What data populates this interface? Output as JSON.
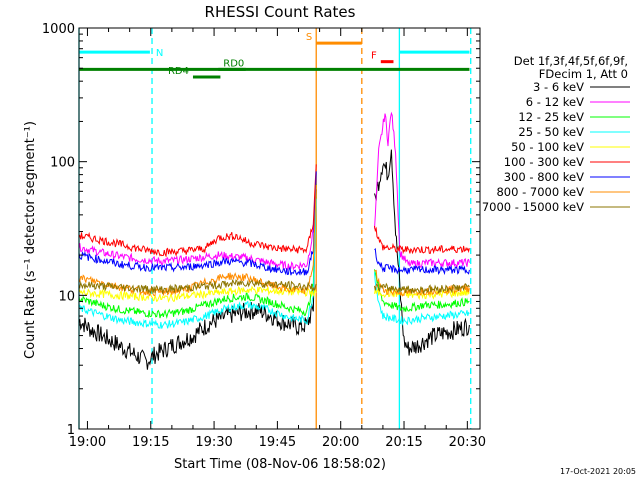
{
  "chart_data": {
    "type": "line",
    "title": "RHESSI Count Rates",
    "xlabel": "Start Time (08-Nov-06 18:58:02)",
    "ylabel": "Count Rate (s⁻¹ detector segment⁻¹)",
    "x_unit": "minutes since 18:58:02",
    "xlim": [
      0,
      95
    ],
    "ylim": [
      1,
      1000
    ],
    "y_scale": "log",
    "x_ticks": [
      {
        "label": "19:00",
        "value": 2
      },
      {
        "label": "19:15",
        "value": 17
      },
      {
        "label": "19:30",
        "value": 32
      },
      {
        "label": "19:45",
        "value": 47
      },
      {
        "label": "20:00",
        "value": 62
      },
      {
        "label": "20:15",
        "value": 77
      },
      {
        "label": "20:30",
        "value": 92
      }
    ],
    "y_ticks": [
      {
        "label": "1",
        "value": 1
      },
      {
        "label": "10",
        "value": 10
      },
      {
        "label": "100",
        "value": 100
      },
      {
        "label": "1000",
        "value": 1000
      }
    ],
    "legend": {
      "placement": "right",
      "header": [
        "Det 1f,3f,4f,5f,6f,9f,",
        "FDecim 1, Att 0"
      ]
    },
    "series": [
      {
        "name": "3 - 6 keV",
        "color": "#000000",
        "x": [
          0,
          3,
          8,
          12,
          16,
          18,
          22,
          27,
          31,
          35,
          39,
          42,
          45,
          48,
          52,
          54,
          55.5,
          56.2,
          70,
          72,
          73.2,
          74,
          75,
          77,
          78,
          80,
          83,
          86,
          90,
          92.5
        ],
        "y": [
          6.5,
          5.5,
          4.5,
          3.8,
          3.2,
          3.6,
          4.2,
          5.0,
          6.2,
          7.0,
          7.5,
          7.8,
          7.2,
          6.4,
          5.8,
          6.0,
          8.0,
          70,
          50,
          100,
          80,
          130,
          30,
          4.5,
          4.0,
          4.2,
          4.8,
          5.2,
          5.6,
          6.0
        ]
      },
      {
        "name": "6 - 12 keV",
        "color": "#ff00ff",
        "x": [
          0,
          5,
          10,
          15,
          20,
          25,
          33,
          40,
          45,
          50,
          54,
          55.5,
          56.2,
          70,
          71,
          72.5,
          73.2,
          74,
          75,
          76,
          78,
          82,
          86,
          92.5
        ],
        "y": [
          23,
          21,
          19.5,
          18.5,
          18,
          18.5,
          20,
          19,
          17.5,
          16.5,
          17,
          30,
          85,
          30,
          120,
          230,
          140,
          240,
          120,
          21,
          17,
          17.5,
          17.5,
          17.5
        ]
      },
      {
        "name": "12 - 25 keV",
        "color": "#00ff00",
        "x": [
          0,
          5,
          10,
          15,
          20,
          25,
          30,
          35,
          40,
          45,
          50,
          54,
          55.5,
          56.2,
          70,
          71,
          72,
          76,
          78,
          82,
          86,
          92.5
        ],
        "y": [
          9.5,
          8.5,
          7.8,
          7.4,
          7.2,
          7.6,
          8.5,
          9.5,
          9.8,
          9.0,
          8.0,
          7.5,
          12,
          70,
          16,
          11,
          9.0,
          8.0,
          8.0,
          8.5,
          8.5,
          9.0
        ]
      },
      {
        "name": "25 - 50 keV",
        "color": "#00ffff",
        "x": [
          0,
          5,
          10,
          15,
          20,
          25,
          30,
          35,
          40,
          45,
          50,
          54,
          55.5,
          56.2,
          70,
          71,
          72,
          76,
          78,
          82,
          86,
          92.5
        ],
        "y": [
          8.0,
          7.2,
          6.5,
          6.2,
          6.0,
          6.3,
          7.0,
          8.0,
          8.5,
          7.8,
          6.8,
          6.5,
          10,
          55,
          14,
          9.0,
          7.0,
          6.5,
          6.5,
          6.8,
          7.0,
          7.3
        ]
      },
      {
        "name": "50 - 100 keV",
        "color": "#ffff00",
        "x": [
          0,
          20,
          40,
          55.5,
          70,
          80,
          92.5
        ],
        "y": [
          10.5,
          9.5,
          11.0,
          10.5,
          10.5,
          10.0,
          10.5
        ]
      },
      {
        "name": "100 - 300 keV",
        "color": "#ff0000",
        "x": [
          0,
          5,
          10,
          15,
          20,
          25,
          30,
          33,
          37,
          40,
          45,
          50,
          54,
          55.5,
          56.2,
          70,
          71,
          72,
          76,
          78,
          82,
          86,
          92.5
        ],
        "y": [
          28,
          26,
          24,
          22,
          21,
          21.5,
          22.5,
          27,
          28,
          25,
          23,
          22,
          22,
          35,
          95,
          34,
          26,
          23,
          22,
          22,
          22,
          22,
          22.5
        ]
      },
      {
        "name": "300 - 800 keV",
        "color": "#0000ff",
        "x": [
          0,
          5,
          10,
          15,
          20,
          25,
          30,
          35,
          40,
          45,
          50,
          54,
          55.5,
          56.2,
          70,
          71,
          72,
          76,
          78,
          82,
          86,
          92.5
        ],
        "y": [
          20,
          18.5,
          17,
          16.3,
          16,
          16.2,
          17,
          18,
          17.5,
          16,
          15,
          15,
          22,
          80,
          22,
          17.5,
          16,
          15.5,
          15.5,
          15.5,
          15.5,
          15.5
        ]
      },
      {
        "name": "800 - 7000 keV",
        "color": "#ff8c00",
        "x": [
          0,
          5,
          10,
          15,
          20,
          25,
          30,
          35,
          40,
          45,
          50,
          54,
          55.5,
          56.2,
          70,
          71,
          72,
          76,
          78,
          82,
          86,
          92.5
        ],
        "y": [
          13.5,
          12.5,
          11.5,
          10.8,
          10.5,
          11,
          12.5,
          14,
          13.5,
          12,
          11,
          10.8,
          17,
          65,
          16,
          12.5,
          11,
          10.5,
          10.5,
          10.8,
          11,
          11.3
        ]
      },
      {
        "name": "7000 - 15000 keV",
        "color": "#8b7500",
        "x": [
          0,
          20,
          40,
          55.5,
          70,
          80,
          92.5
        ],
        "y": [
          12,
          11,
          12.5,
          11.5,
          11.5,
          11,
          11.5
        ]
      }
    ],
    "annotations": [
      {
        "type": "vline",
        "x": 0,
        "color": "#00ffff",
        "style": "solid"
      },
      {
        "type": "vline",
        "x": 17.3,
        "color": "#00ffff",
        "style": "dashed"
      },
      {
        "type": "vline",
        "x": 56.2,
        "color": "#ff8c00",
        "style": "solid"
      },
      {
        "type": "vline",
        "x": 67.0,
        "color": "#ff8c00",
        "style": "dashed"
      },
      {
        "type": "vline",
        "x": 75.9,
        "color": "#00ffff",
        "style": "solid"
      },
      {
        "type": "vline",
        "x": 92.8,
        "color": "#00ffff",
        "style": "dashed"
      },
      {
        "type": "hbar",
        "x": [
          0,
          16.8
        ],
        "y": 660,
        "color": "#00ffff",
        "label": "N"
      },
      {
        "type": "hbar",
        "x": [
          76,
          92.5
        ],
        "y": 660,
        "color": "#00ffff",
        "label": ""
      },
      {
        "type": "hbar",
        "x": [
          0,
          92.5
        ],
        "y": 490,
        "color": "#008000",
        "label": ""
      },
      {
        "type": "hbar",
        "x": [
          33,
          39.5
        ],
        "y": 490,
        "color": "#008000",
        "label": "RD0"
      },
      {
        "type": "hbar",
        "x": [
          27,
          33.5
        ],
        "y": 430,
        "color": "#008000",
        "label": "RD4"
      },
      {
        "type": "hbar",
        "x": [
          56.2,
          67.0
        ],
        "y": 770,
        "color": "#ff8c00",
        "label": "S"
      },
      {
        "type": "hbar",
        "x": [
          71.5,
          74.5
        ],
        "y": 560,
        "color": "#ff0000",
        "label": "F"
      }
    ]
  },
  "timestamp": "17-Oct-2021 20:05"
}
